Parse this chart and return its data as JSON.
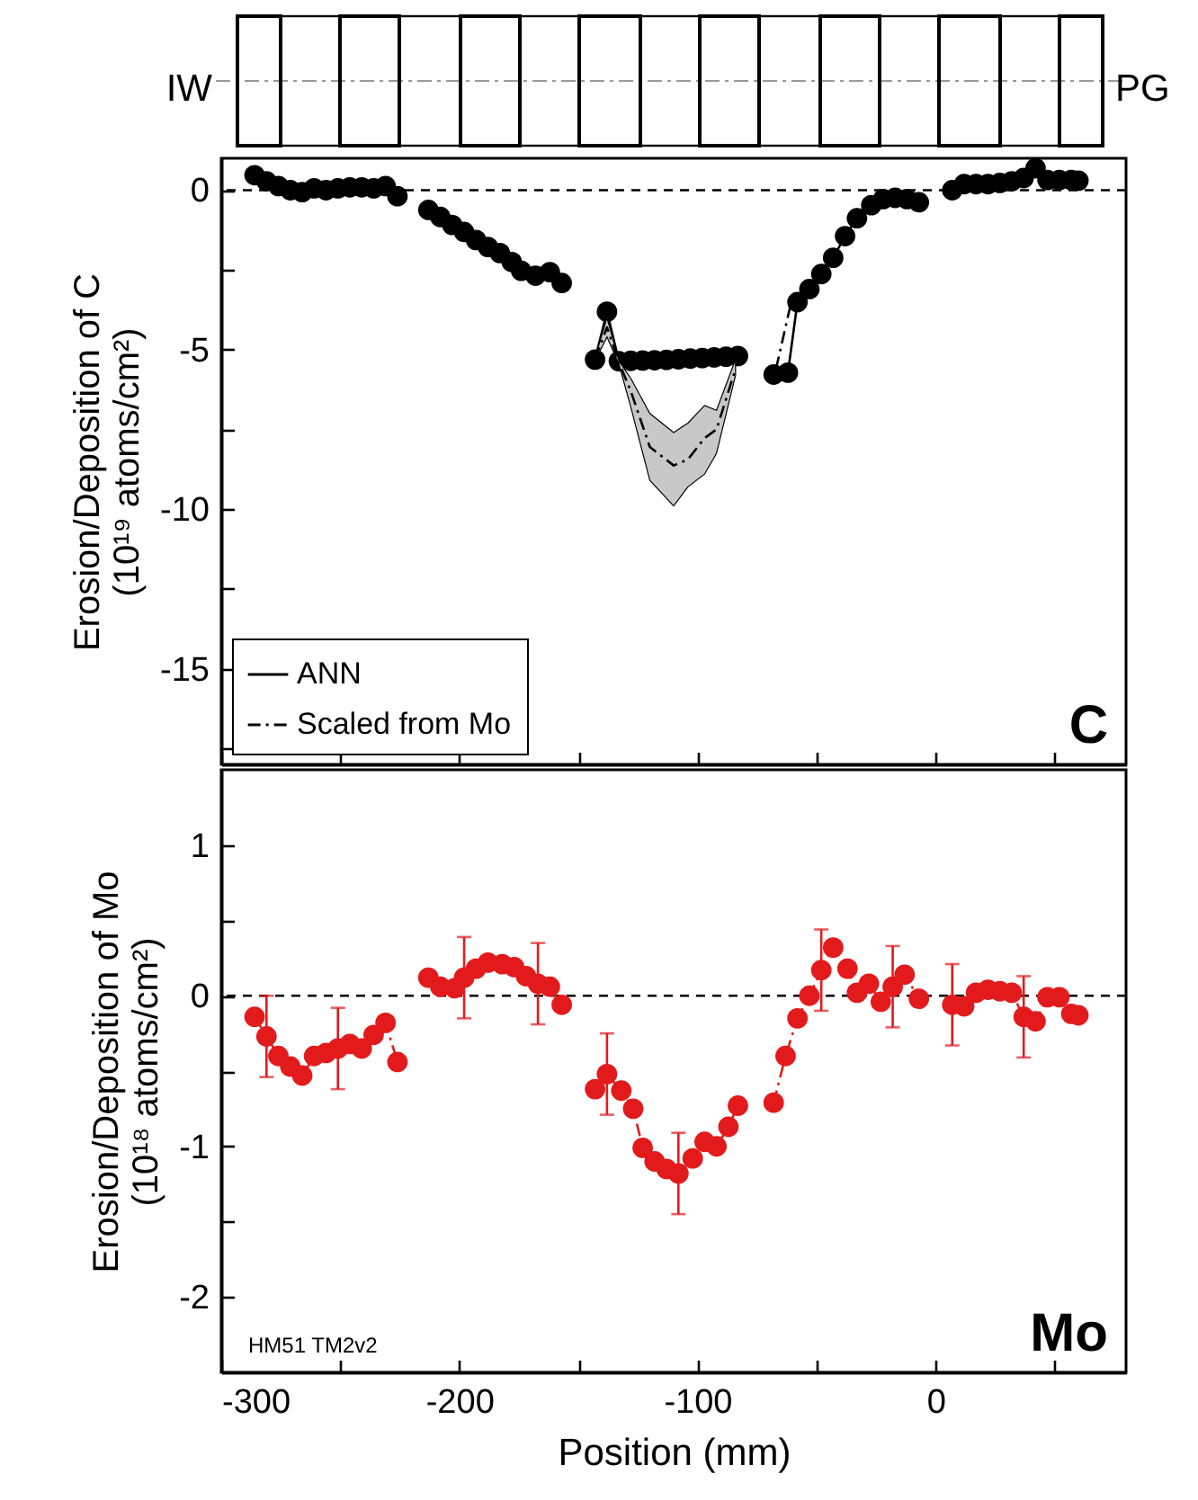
{
  "chart_data": [
    {
      "type": "line",
      "ylabel": "Erosion/Deposition of C\n(10¹⁹ atoms/cm²)",
      "annotations": [
        "IW",
        "PG",
        "C"
      ],
      "xlim": [
        -300,
        80
      ],
      "xticks": [
        -300,
        {
          "value": -250,
          "label": null
        },
        -200,
        {
          "value": -150,
          "label": null
        },
        -100,
        {
          "value": -50,
          "label": null
        },
        0,
        {
          "value": 50,
          "label": null
        }
      ],
      "ylim": [
        -18,
        1
      ],
      "yticks": [
        0,
        {
          "value": -2.5,
          "label": null
        },
        -5,
        {
          "value": -7.5,
          "label": null
        },
        -10,
        {
          "value": -12.5,
          "label": null
        },
        -15,
        {
          "value": -17.5,
          "label": null
        }
      ],
      "tick_labels": "y",
      "legend": "bottom left",
      "grid": false,
      "ref_lines": [
        {
          "axis": "y",
          "value": 0,
          "color": "#000000",
          "line_style": "dashed"
        }
      ],
      "series": [
        {
          "name": "ANN",
          "color": "#000000",
          "marker": "circle",
          "line_style": "solid",
          "x": [
            -286,
            -281,
            -276,
            -271,
            -266,
            -261,
            -256,
            -251,
            -246,
            -241,
            -236,
            -231,
            -226,
            -220,
            -213,
            -208,
            -203,
            -198,
            -193,
            -188,
            -183,
            -178,
            -174,
            -168,
            -162,
            -157,
            -150,
            -143,
            -138,
            -133,
            -128,
            -123,
            -118,
            -113,
            -108,
            -103,
            -98,
            -93,
            -88,
            -83,
            -75,
            -68,
            -62,
            -58,
            -53,
            -48,
            -43,
            -38,
            -33,
            -27,
            -22,
            -17,
            -12,
            -7,
            0,
            7,
            12,
            17,
            22,
            27,
            32,
            37,
            42,
            47,
            52,
            57,
            60
          ],
          "values": [
            0.47,
            0.28,
            0.13,
            0,
            -0.06,
            0.06,
            0,
            0.06,
            0.09,
            0.09,
            0.06,
            0.13,
            -0.19,
            null,
            -0.62,
            -0.84,
            -1.09,
            -1.31,
            -1.56,
            -1.78,
            -1.97,
            -2.25,
            -2.53,
            -2.68,
            -2.57,
            -2.91,
            null,
            -5.31,
            -3.81,
            -5.36,
            -5.35,
            -5.34,
            -5.33,
            -5.32,
            -5.3,
            -5.28,
            -5.26,
            -5.24,
            -5.22,
            -5.2,
            null,
            -5.78,
            -5.72,
            -3.51,
            -3.1,
            -2.63,
            -2.12,
            -1.44,
            -0.88,
            -0.47,
            -0.28,
            -0.24,
            -0.28,
            -0.38,
            null,
            0,
            0.19,
            0.19,
            0.19,
            0.23,
            0.28,
            0.38,
            0.69,
            0.32,
            0.32,
            0.32,
            0.3
          ]
        },
        {
          "name": "Scaled from Mo",
          "color": "#000000",
          "marker": "none",
          "line_style": "dashed",
          "x": [
            -143,
            -138,
            -133,
            -128,
            -120,
            -110,
            -104,
            -97,
            -92,
            -84,
            -75,
            -67,
            -60
          ],
          "values": [
            -5.3,
            -4.3,
            -5.4,
            -6.3,
            -8.05,
            -8.63,
            -8.44,
            -7.77,
            -7.5,
            -5.6,
            null,
            -5.6,
            -3.3
          ],
          "lower": [
            -5.35,
            -4.6,
            -5.45,
            -6.8,
            -9.1,
            -9.9,
            -9.3,
            -8.9,
            -8.25,
            -5.8,
            null,
            null,
            null
          ],
          "upper": [
            -5.25,
            -4.0,
            -5.35,
            -5.9,
            -7.0,
            -7.6,
            -7.3,
            -6.75,
            -6.9,
            -5.3,
            null,
            null,
            null
          ]
        }
      ]
    },
    {
      "type": "line",
      "xlabel": "Position (mm)",
      "ylabel": "Erosion/Deposition of Mo\n(10¹⁸ atoms/cm²)",
      "annotations": [
        "Mo",
        "HM51 TM2v2"
      ],
      "xlim": [
        -300,
        80
      ],
      "xticks": [
        -300,
        {
          "value": -250,
          "label": null
        },
        -200,
        {
          "value": -150,
          "label": null
        },
        -100,
        {
          "value": -50,
          "label": null
        },
        0,
        {
          "value": 50,
          "label": null
        }
      ],
      "ylim": [
        -2.5,
        1.5
      ],
      "yticks": [
        1,
        {
          "value": 0.5,
          "label": null
        },
        0,
        {
          "value": -0.5,
          "label": null
        },
        -1,
        {
          "value": -1.5,
          "label": null
        },
        -2
      ],
      "grid": false,
      "ref_lines": [
        {
          "axis": "y",
          "value": 0,
          "color": "#000000",
          "line_style": "dashed"
        }
      ],
      "series": [
        {
          "color": "#e31a1c",
          "marker": "circle",
          "line_style": "dashed",
          "x": [
            -286,
            -281,
            -276,
            -271,
            -266,
            -261,
            -256,
            -251,
            -246,
            -241,
            -236,
            -231,
            -226,
            -220,
            -213,
            -208,
            -202,
            -198,
            -193,
            -188,
            -182,
            -177,
            -172,
            -167,
            -162,
            -157,
            -150,
            -143,
            -138,
            -132,
            -127,
            -123,
            -118,
            -113,
            -108,
            -102,
            -97,
            -92,
            -87,
            -83,
            -75,
            -68,
            -63,
            -58,
            -53,
            -48,
            -43,
            -37,
            -33,
            -28,
            -23,
            -18,
            -13,
            -7,
            0,
            7,
            12,
            17,
            22,
            27,
            32,
            37,
            42,
            47,
            52,
            57,
            60
          ],
          "values": [
            -0.14,
            -0.27,
            -0.4,
            -0.47,
            -0.53,
            -0.4,
            -0.38,
            -0.35,
            -0.32,
            -0.35,
            -0.26,
            -0.18,
            -0.44,
            null,
            0.12,
            0.06,
            0.05,
            0.12,
            0.18,
            0.22,
            0.21,
            0.19,
            0.13,
            0.08,
            0.06,
            -0.06,
            null,
            -0.62,
            -0.52,
            -0.63,
            -0.75,
            -1.01,
            -1.1,
            -1.15,
            -1.18,
            -1.08,
            -0.97,
            -1.0,
            -0.87,
            -0.73,
            null,
            -0.71,
            -0.4,
            -0.15,
            0,
            0.17,
            0.32,
            0.18,
            0.02,
            0.08,
            -0.04,
            0.06,
            0.14,
            -0.02,
            null,
            -0.06,
            -0.07,
            0.02,
            0.04,
            0.03,
            0.02,
            -0.14,
            -0.17,
            -0.01,
            -0.01,
            -0.12,
            -0.13
          ],
          "errors": [
            null,
            0.27,
            null,
            null,
            null,
            null,
            null,
            0.27,
            null,
            null,
            null,
            null,
            null,
            null,
            null,
            null,
            null,
            0.27,
            null,
            null,
            null,
            null,
            null,
            0.27,
            null,
            null,
            null,
            null,
            0.27,
            null,
            null,
            null,
            null,
            null,
            0.27,
            null,
            null,
            null,
            null,
            null,
            null,
            null,
            null,
            null,
            null,
            0.27,
            null,
            null,
            null,
            null,
            null,
            0.27,
            null,
            null,
            null,
            0.27,
            null,
            null,
            null,
            null,
            null,
            0.27,
            null,
            null,
            null,
            null,
            null
          ]
        }
      ]
    }
  ]
}
